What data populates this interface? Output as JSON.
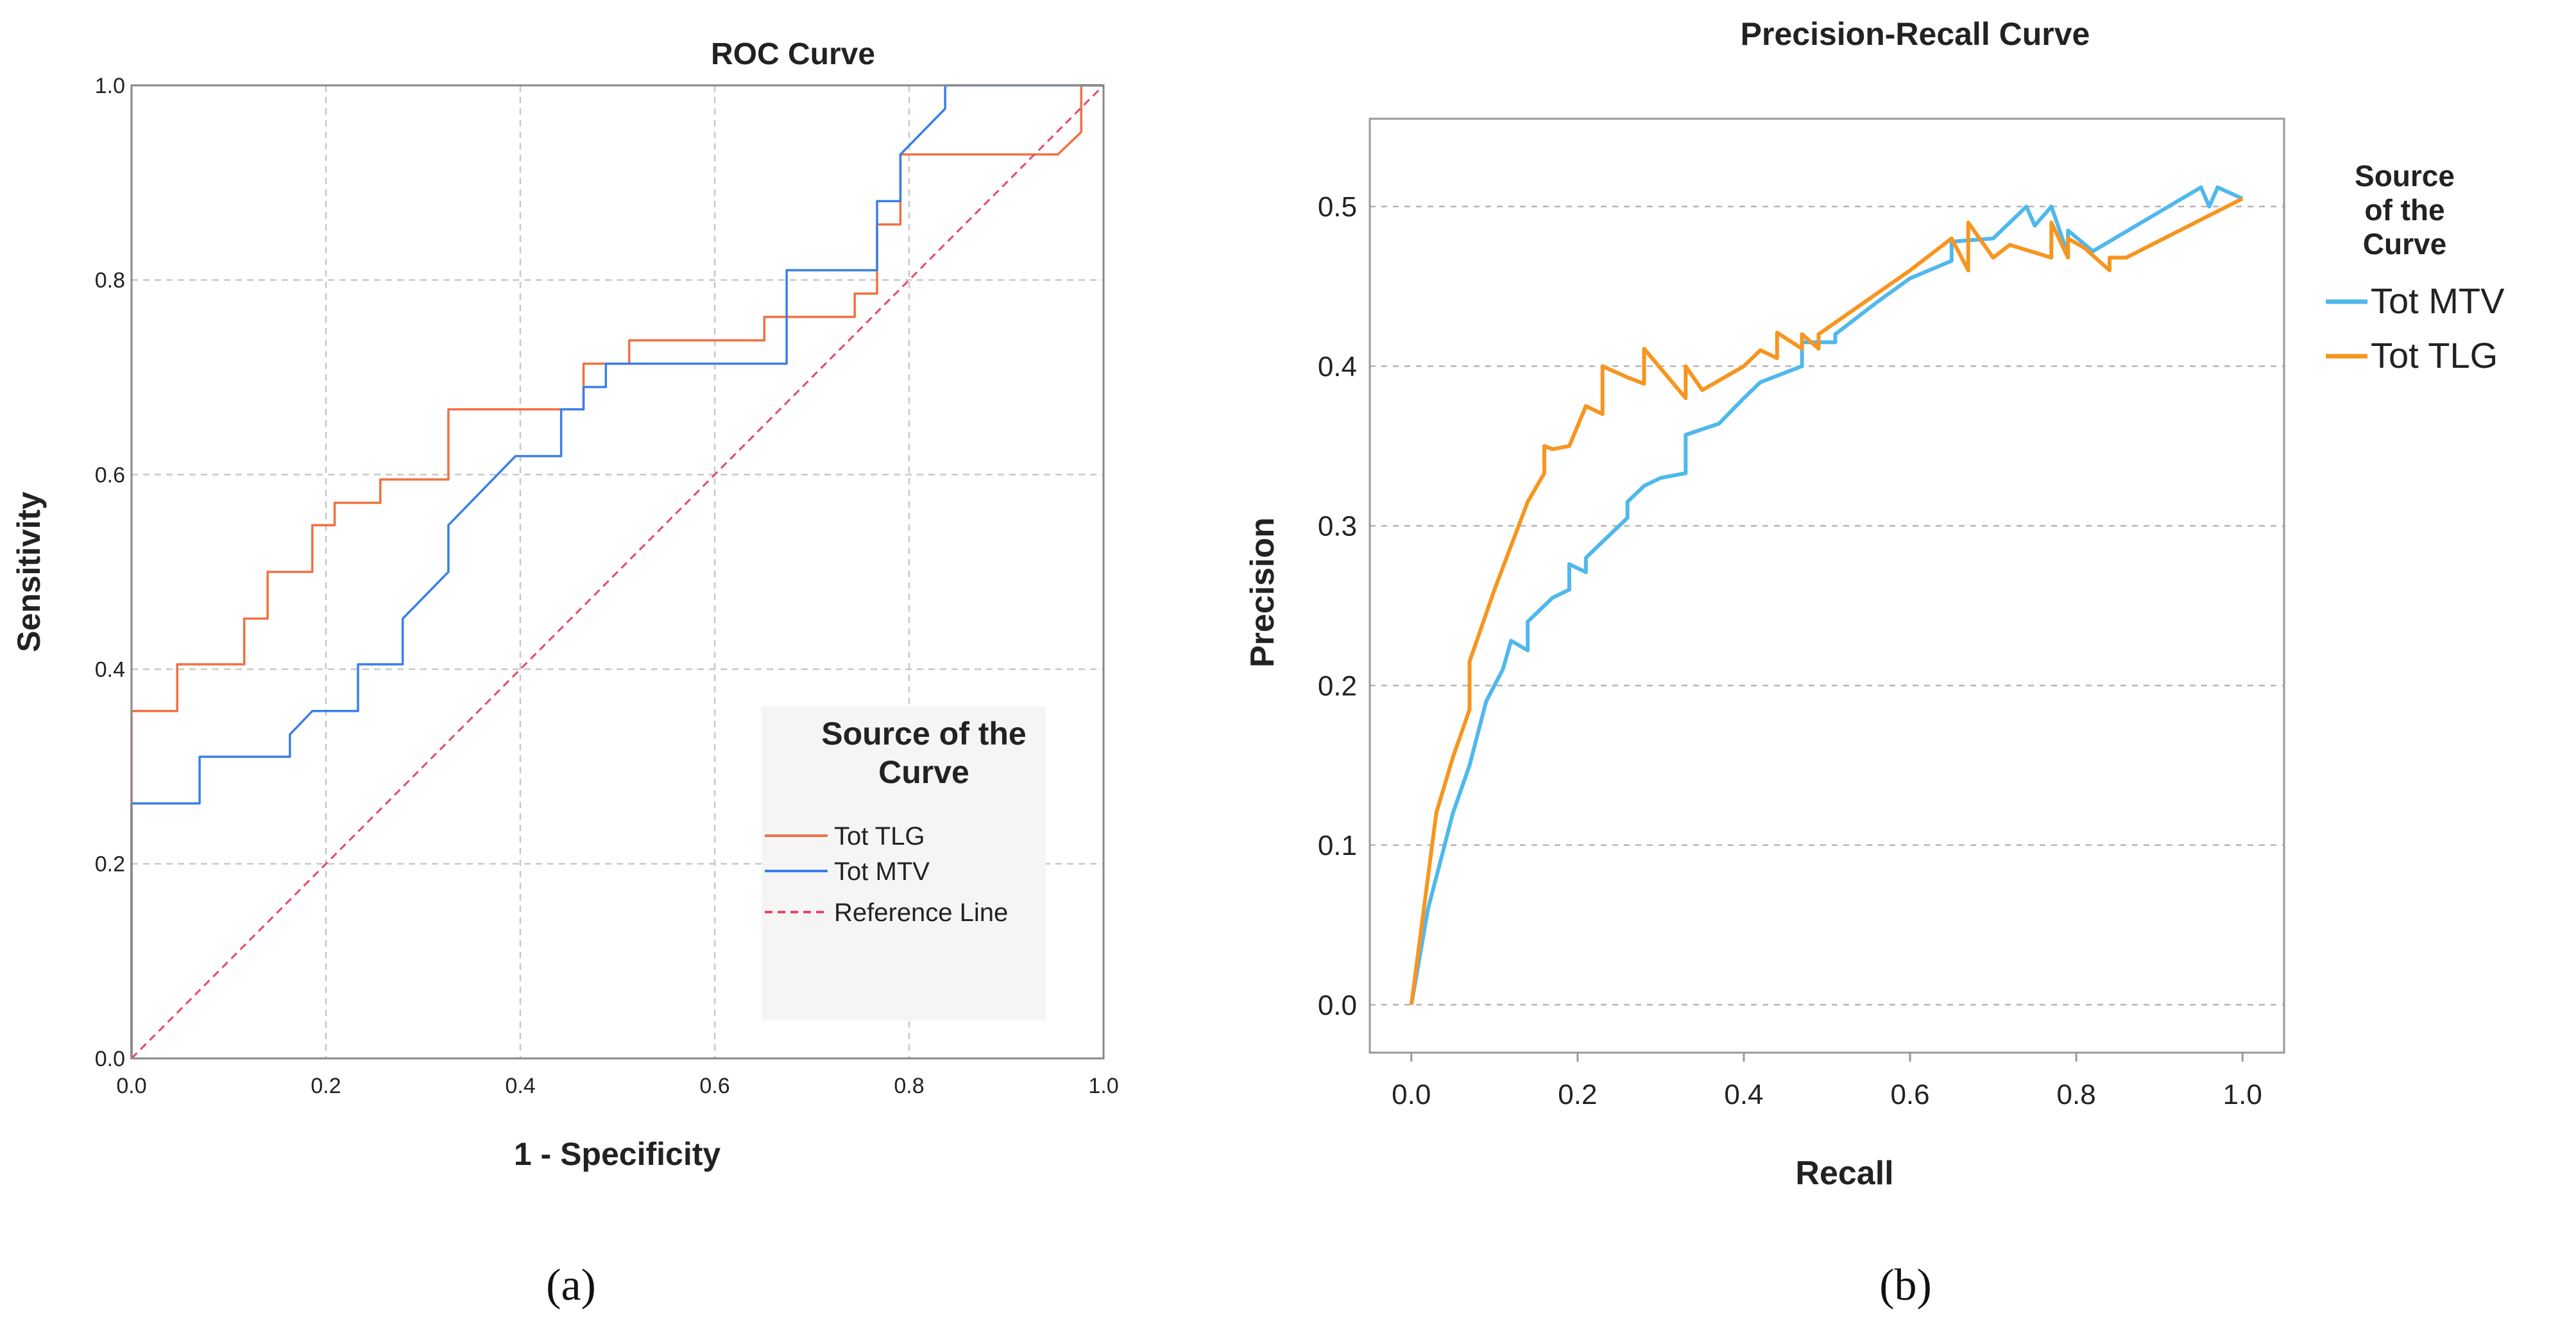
{
  "chart_data": [
    {
      "type": "line",
      "panel_label": "(a)",
      "title": "ROC Curve",
      "xlabel": "1 - Specificity",
      "ylabel": "Sensitivity",
      "xlim": [
        0,
        1
      ],
      "ylim": [
        0,
        1
      ],
      "grid": true,
      "xticks": [
        "0.0",
        "0.2",
        "0.4",
        "0.6",
        "0.8",
        "1.0"
      ],
      "yticks": [
        "0.0",
        "0.2",
        "0.4",
        "0.6",
        "0.8",
        "1.0"
      ],
      "legend": {
        "title": "Source of the Curve",
        "placement": "bottom-right",
        "entries": [
          "Tot TLG",
          "Tot MTV",
          "Reference Line"
        ]
      },
      "series": [
        {
          "name": "Tot TLG",
          "color": "#f07040",
          "style": "step",
          "points": [
            [
              0,
              0
            ],
            [
              0,
              0.262
            ],
            [
              0,
              0.357
            ],
            [
              0.047,
              0.357
            ],
            [
              0.047,
              0.405
            ],
            [
              0.116,
              0.405
            ],
            [
              0.116,
              0.452
            ],
            [
              0.14,
              0.452
            ],
            [
              0.14,
              0.5
            ],
            [
              0.186,
              0.5
            ],
            [
              0.186,
              0.548
            ],
            [
              0.209,
              0.548
            ],
            [
              0.209,
              0.571
            ],
            [
              0.256,
              0.571
            ],
            [
              0.256,
              0.595
            ],
            [
              0.326,
              0.595
            ],
            [
              0.326,
              0.667
            ],
            [
              0.465,
              0.667
            ],
            [
              0.465,
              0.714
            ],
            [
              0.512,
              0.714
            ],
            [
              0.512,
              0.738
            ],
            [
              0.651,
              0.738
            ],
            [
              0.651,
              0.762
            ],
            [
              0.744,
              0.762
            ],
            [
              0.744,
              0.786
            ],
            [
              0.767,
              0.786
            ],
            [
              0.767,
              0.857
            ],
            [
              0.791,
              0.857
            ],
            [
              0.791,
              0.929
            ],
            [
              0.953,
              0.929
            ],
            [
              0.977,
              0.952
            ],
            [
              0.977,
              1.0
            ],
            [
              1.0,
              1.0
            ]
          ]
        },
        {
          "name": "Tot MTV",
          "color": "#3a7fe6",
          "style": "step",
          "points": [
            [
              0,
              0
            ],
            [
              0,
              0.262
            ],
            [
              0.07,
              0.262
            ],
            [
              0.07,
              0.31
            ],
            [
              0.163,
              0.31
            ],
            [
              0.163,
              0.333
            ],
            [
              0.186,
              0.357
            ],
            [
              0.233,
              0.357
            ],
            [
              0.233,
              0.405
            ],
            [
              0.279,
              0.405
            ],
            [
              0.279,
              0.452
            ],
            [
              0.326,
              0.5
            ],
            [
              0.326,
              0.548
            ],
            [
              0.395,
              0.619
            ],
            [
              0.442,
              0.619
            ],
            [
              0.442,
              0.667
            ],
            [
              0.465,
              0.667
            ],
            [
              0.465,
              0.69
            ],
            [
              0.488,
              0.69
            ],
            [
              0.488,
              0.714
            ],
            [
              0.674,
              0.714
            ],
            [
              0.674,
              0.81
            ],
            [
              0.767,
              0.81
            ],
            [
              0.767,
              0.881
            ],
            [
              0.791,
              0.881
            ],
            [
              0.791,
              0.929
            ],
            [
              0.837,
              0.976
            ],
            [
              0.837,
              1.0
            ],
            [
              1.0,
              1.0
            ]
          ]
        },
        {
          "name": "Reference Line",
          "color": "#e8476a",
          "style": "dashed",
          "points": [
            [
              0,
              0
            ],
            [
              1,
              1
            ]
          ]
        }
      ]
    },
    {
      "type": "line",
      "panel_label": "(b)",
      "title": "Precision-Recall Curve",
      "xlabel": "Recall",
      "ylabel": "Precision",
      "xlim": [
        -0.05,
        1.05
      ],
      "ylim": [
        -0.03,
        0.555
      ],
      "grid": true,
      "xticks": [
        "0.0",
        "0.2",
        "0.4",
        "0.6",
        "0.8",
        "1.0"
      ],
      "yticks": [
        "0.0",
        "0.1",
        "0.2",
        "0.3",
        "0.4",
        "0.5"
      ],
      "legend": {
        "title": "Source of the Curve",
        "placement": "right",
        "entries": [
          "Tot MTV",
          "Tot TLG"
        ]
      },
      "series": [
        {
          "name": "Tot MTV",
          "color": "#4fb8ec",
          "points": [
            [
              0,
              0
            ],
            [
              0.02,
              0.06
            ],
            [
              0.04,
              0.1
            ],
            [
              0.05,
              0.12
            ],
            [
              0.07,
              0.15
            ],
            [
              0.09,
              0.19
            ],
            [
              0.1,
              0.2
            ],
            [
              0.11,
              0.21
            ],
            [
              0.12,
              0.228
            ],
            [
              0.14,
              0.222
            ],
            [
              0.14,
              0.24
            ],
            [
              0.17,
              0.255
            ],
            [
              0.19,
              0.26
            ],
            [
              0.19,
              0.276
            ],
            [
              0.21,
              0.271
            ],
            [
              0.21,
              0.28
            ],
            [
              0.23,
              0.29
            ],
            [
              0.26,
              0.305
            ],
            [
              0.26,
              0.315
            ],
            [
              0.28,
              0.325
            ],
            [
              0.3,
              0.33
            ],
            [
              0.33,
              0.333
            ],
            [
              0.33,
              0.357
            ],
            [
              0.37,
              0.364
            ],
            [
              0.4,
              0.38
            ],
            [
              0.42,
              0.39
            ],
            [
              0.47,
              0.4
            ],
            [
              0.47,
              0.415
            ],
            [
              0.51,
              0.415
            ],
            [
              0.51,
              0.42
            ],
            [
              0.56,
              0.44
            ],
            [
              0.6,
              0.455
            ],
            [
              0.65,
              0.466
            ],
            [
              0.65,
              0.478
            ],
            [
              0.7,
              0.48
            ],
            [
              0.72,
              0.49
            ],
            [
              0.74,
              0.5
            ],
            [
              0.75,
              0.488
            ],
            [
              0.77,
              0.5
            ],
            [
              0.79,
              0.47
            ],
            [
              0.79,
              0.485
            ],
            [
              0.82,
              0.472
            ],
            [
              0.95,
              0.512
            ],
            [
              0.96,
              0.5
            ],
            [
              0.97,
              0.512
            ],
            [
              1.0,
              0.505
            ]
          ]
        },
        {
          "name": "Tot TLG",
          "color": "#f7951f",
          "points": [
            [
              0,
              0
            ],
            [
              0.02,
              0.08
            ],
            [
              0.03,
              0.12
            ],
            [
              0.05,
              0.155
            ],
            [
              0.07,
              0.185
            ],
            [
              0.07,
              0.215
            ],
            [
              0.1,
              0.26
            ],
            [
              0.14,
              0.315
            ],
            [
              0.16,
              0.333
            ],
            [
              0.16,
              0.35
            ],
            [
              0.17,
              0.348
            ],
            [
              0.19,
              0.35
            ],
            [
              0.21,
              0.375
            ],
            [
              0.23,
              0.37
            ],
            [
              0.23,
              0.4
            ],
            [
              0.26,
              0.393
            ],
            [
              0.28,
              0.389
            ],
            [
              0.28,
              0.411
            ],
            [
              0.33,
              0.38
            ],
            [
              0.33,
              0.4
            ],
            [
              0.35,
              0.385
            ],
            [
              0.4,
              0.4
            ],
            [
              0.42,
              0.41
            ],
            [
              0.44,
              0.405
            ],
            [
              0.44,
              0.421
            ],
            [
              0.47,
              0.411
            ],
            [
              0.47,
              0.42
            ],
            [
              0.49,
              0.411
            ],
            [
              0.49,
              0.42
            ],
            [
              0.6,
              0.46
            ],
            [
              0.65,
              0.48
            ],
            [
              0.67,
              0.46
            ],
            [
              0.67,
              0.49
            ],
            [
              0.7,
              0.468
            ],
            [
              0.72,
              0.476
            ],
            [
              0.77,
              0.468
            ],
            [
              0.77,
              0.49
            ],
            [
              0.79,
              0.468
            ],
            [
              0.79,
              0.48
            ],
            [
              0.81,
              0.474
            ],
            [
              0.84,
              0.46
            ],
            [
              0.84,
              0.468
            ],
            [
              0.86,
              0.468
            ],
            [
              1.0,
              0.505
            ]
          ]
        }
      ]
    }
  ]
}
